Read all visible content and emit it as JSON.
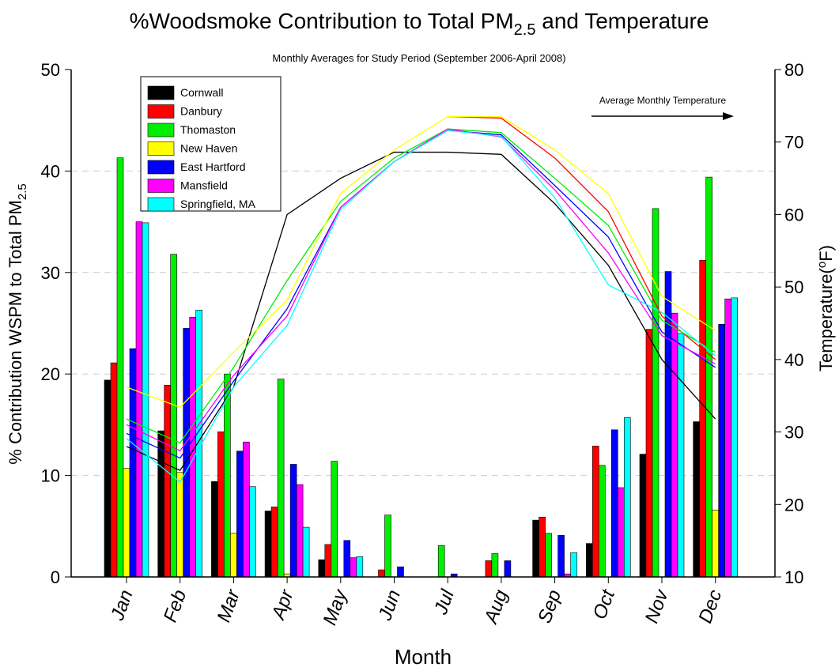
{
  "chart_data": {
    "type": "bar",
    "title": {
      "text": "%Woodsmoke Contribution to Total PM",
      "sub": "2.5",
      "tail": " and Temperature"
    },
    "subtitle": "Monthly Averages for Study Period (September 2006-April 2008)",
    "x_label": "Month",
    "y_label": {
      "text": "% Contribution WSPM to Total PM",
      "sub": "2.5"
    },
    "y2_label": {
      "text": "Temperature(",
      "sup": "o",
      "tail": "F)"
    },
    "annotation": "Average Monthly Temperature",
    "categories": [
      "Jan",
      "Feb",
      "Mar",
      "Apr",
      "May",
      "Jun",
      "Jul",
      "Aug",
      "Sep",
      "Oct",
      "Nov",
      "Dec"
    ],
    "ylim": [
      0,
      50
    ],
    "yticks": [
      0,
      10,
      20,
      30,
      40,
      50
    ],
    "y2lim": [
      10,
      80
    ],
    "y2ticks": [
      10,
      20,
      30,
      40,
      50,
      60,
      70,
      80
    ],
    "grid": true,
    "legend": "upper left",
    "series": [
      {
        "name": "Cornwall",
        "color": "#000000",
        "values": [
          19.4,
          14.4,
          9.4,
          6.5,
          1.7,
          null,
          null,
          null,
          5.6,
          3.3,
          12.1,
          15.3
        ]
      },
      {
        "name": "Danbury",
        "color": "#ff0000",
        "values": [
          21.1,
          18.9,
          14.3,
          6.9,
          3.2,
          0.7,
          null,
          1.6,
          5.9,
          12.9,
          24.4,
          31.2
        ]
      },
      {
        "name": "Thomaston",
        "color": "#00ee00",
        "values": [
          41.3,
          31.8,
          20.0,
          19.5,
          11.4,
          6.1,
          3.1,
          2.3,
          4.3,
          11.0,
          36.3,
          39.4
        ]
      },
      {
        "name": "New Haven",
        "color": "#ffff00",
        "values": [
          10.7,
          10.3,
          4.3,
          0.3,
          null,
          null,
          null,
          null,
          null,
          null,
          null,
          6.6
        ]
      },
      {
        "name": "East Hartford",
        "color": "#0000ff",
        "values": [
          22.5,
          24.5,
          12.4,
          11.1,
          3.6,
          1.0,
          0.3,
          1.6,
          4.1,
          14.5,
          30.1,
          24.9
        ]
      },
      {
        "name": "Mansfield",
        "color": "#ff00ff",
        "values": [
          35.0,
          25.6,
          13.3,
          9.1,
          1.9,
          null,
          null,
          null,
          0.3,
          8.8,
          26.0,
          27.4
        ]
      },
      {
        "name": "Springfield, MA",
        "color": "#00ffff",
        "values": [
          34.9,
          26.3,
          8.9,
          4.9,
          2.0,
          null,
          null,
          null,
          2.4,
          15.7,
          24.0,
          27.5
        ]
      }
    ],
    "temperature_series": [
      {
        "color": "#000000",
        "axis": "y2",
        "values": [
          28.0,
          24.7,
          36.2,
          60.0,
          65.0,
          68.6,
          68.6,
          68.3,
          61.5,
          53.0,
          40.0,
          31.8
        ]
      },
      {
        "color": "#ff0000",
        "axis": "y2",
        "values": [
          null,
          null,
          null,
          null,
          null,
          null,
          73.5,
          73.3,
          67.8,
          60.4,
          46.0,
          40.0
        ]
      },
      {
        "color": "#00ee00",
        "axis": "y2",
        "values": [
          31.8,
          28.5,
          38.9,
          50.9,
          61.8,
          67.8,
          71.8,
          71.3,
          65.0,
          58.5,
          45.4,
          41.0
        ]
      },
      {
        "color": "#ffff00",
        "axis": "y2",
        "values": [
          36.2,
          33.4,
          41.0,
          48.2,
          62.9,
          68.9,
          73.5,
          73.5,
          68.9,
          62.9,
          48.7,
          44.0
        ]
      },
      {
        "color": "#0000ff",
        "axis": "y2",
        "values": [
          29.8,
          26.4,
          37.0,
          47.0,
          61.0,
          67.3,
          71.6,
          71.0,
          64.0,
          56.9,
          43.8,
          38.9
        ]
      },
      {
        "color": "#ff00ff",
        "axis": "y2",
        "values": [
          31.0,
          27.4,
          37.8,
          46.0,
          61.0,
          67.3,
          71.8,
          70.7,
          63.4,
          54.7,
          43.3,
          39.4
        ]
      },
      {
        "color": "#00ffff",
        "axis": "y2",
        "values": [
          29.1,
          23.1,
          36.2,
          44.7,
          60.7,
          67.3,
          71.6,
          70.8,
          62.3,
          50.3,
          46.5,
          40.5
        ]
      }
    ]
  }
}
